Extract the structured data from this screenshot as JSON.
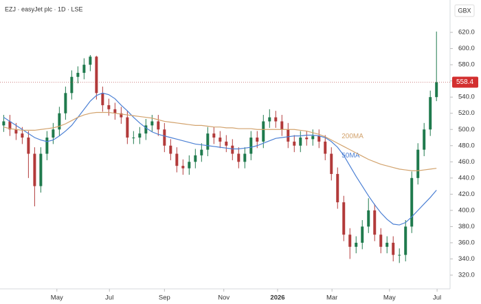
{
  "chart_data": {
    "type": "candlestick",
    "title": "EZJ · easyJet plc · 1D · LSE",
    "currency": "GBX",
    "x": [
      0,
      1,
      2,
      3,
      4,
      5,
      6,
      7,
      8,
      9,
      10,
      11,
      12,
      13,
      14,
      15,
      16,
      17,
      18,
      19,
      20,
      21,
      22,
      23,
      24,
      25,
      26,
      27,
      28,
      29,
      30,
      31,
      32,
      33,
      34,
      35,
      36,
      37,
      38,
      39,
      40,
      41,
      42,
      43,
      44,
      45,
      46,
      47,
      48,
      49,
      50,
      51,
      52,
      53,
      54,
      55,
      56,
      57,
      58,
      59,
      60,
      61,
      62,
      63,
      64,
      65,
      66,
      67,
      68,
      69,
      70
    ],
    "open": [
      505,
      510,
      500,
      495,
      490,
      470,
      430,
      470,
      490,
      500,
      520,
      545,
      565,
      570,
      580,
      590,
      545,
      530,
      525,
      520,
      515,
      490,
      490,
      495,
      505,
      510,
      500,
      480,
      470,
      455,
      452,
      460,
      468,
      475,
      495,
      490,
      485,
      480,
      470,
      460,
      470,
      490,
      485,
      510,
      515,
      510,
      500,
      485,
      480,
      490,
      488,
      492,
      485,
      470,
      445,
      410,
      370,
      355,
      360,
      380,
      400,
      370,
      355,
      360,
      345,
      345,
      380,
      440,
      475,
      500,
      540
    ],
    "high": [
      518,
      518,
      508,
      503,
      498,
      478,
      478,
      498,
      508,
      528,
      553,
      573,
      578,
      588,
      592,
      591,
      553,
      538,
      533,
      528,
      523,
      498,
      503,
      513,
      518,
      518,
      508,
      488,
      478,
      463,
      468,
      476,
      483,
      503,
      503,
      498,
      493,
      488,
      478,
      478,
      498,
      498,
      518,
      525,
      523,
      518,
      508,
      493,
      498,
      498,
      500,
      500,
      493,
      478,
      453,
      418,
      378,
      368,
      388,
      415,
      408,
      378,
      368,
      368,
      353,
      388,
      448,
      483,
      508,
      548,
      621
    ],
    "low": [
      497,
      492,
      487,
      482,
      440,
      405,
      422,
      462,
      482,
      492,
      512,
      537,
      557,
      562,
      572,
      537,
      522,
      517,
      512,
      507,
      482,
      482,
      482,
      487,
      497,
      492,
      472,
      462,
      447,
      444,
      444,
      452,
      460,
      467,
      482,
      477,
      472,
      462,
      452,
      452,
      462,
      477,
      477,
      502,
      502,
      492,
      477,
      472,
      472,
      480,
      480,
      477,
      462,
      437,
      402,
      362,
      340,
      347,
      352,
      372,
      362,
      347,
      347,
      337,
      335,
      337,
      372,
      432,
      467,
      492,
      535
    ],
    "close": [
      510,
      500,
      495,
      490,
      470,
      430,
      470,
      490,
      500,
      520,
      545,
      565,
      570,
      580,
      590,
      545,
      530,
      525,
      520,
      515,
      490,
      490,
      495,
      505,
      510,
      500,
      480,
      470,
      455,
      452,
      460,
      468,
      475,
      495,
      490,
      485,
      480,
      470,
      460,
      470,
      490,
      485,
      510,
      515,
      510,
      500,
      485,
      480,
      490,
      488,
      492,
      485,
      470,
      445,
      410,
      370,
      355,
      360,
      380,
      400,
      370,
      355,
      360,
      345,
      345,
      380,
      440,
      475,
      500,
      540,
      558.4
    ],
    "up_color": "#1f7a4d",
    "down_color": "#b23a3a",
    "series": [
      {
        "name": "50MA",
        "color": "#4a7fd4",
        "values": [
          515,
          510,
          505,
          500,
          495,
          490,
          487,
          485,
          487,
          492,
          498,
          505,
          515,
          525,
          535,
          542,
          545,
          543,
          538,
          530,
          523,
          515,
          508,
          502,
          497,
          494,
          492,
          490,
          488,
          486,
          484,
          482,
          481,
          480,
          479,
          478,
          477,
          476,
          476,
          477,
          478,
          480,
          483,
          486,
          489,
          490,
          491,
          492,
          492,
          493,
          493,
          492,
          490,
          485,
          478,
          468,
          455,
          442,
          430,
          418,
          407,
          397,
          389,
          383,
          382,
          385,
          392,
          400,
          408,
          416,
          425
        ]
      },
      {
        "name": "200MA",
        "color": "#d2a26c",
        "values": [
          503,
          501,
          500,
          499,
          499,
          499,
          500,
          501,
          502,
          504,
          507,
          511,
          515,
          518,
          520,
          521,
          521,
          521,
          520,
          519,
          518,
          517,
          516,
          515,
          514,
          512,
          510,
          509,
          508,
          507,
          506,
          505,
          505,
          504,
          503,
          503,
          502,
          502,
          501,
          501,
          501,
          500,
          500,
          500,
          500,
          500,
          500,
          500,
          499,
          498,
          496,
          494,
          491,
          487,
          483,
          479,
          475,
          471,
          467,
          463,
          460,
          457,
          455,
          453,
          451,
          450,
          449,
          449,
          450,
          451,
          452
        ]
      }
    ],
    "last_price": 558.4,
    "xlim": [
      -0.6,
      72.2
    ],
    "xticks": [
      {
        "value": 8.6,
        "label": "May"
      },
      {
        "value": 17.1,
        "label": "Jul"
      },
      {
        "value": 26,
        "label": "Sep"
      },
      {
        "value": 35.6,
        "label": "Nov"
      },
      {
        "value": 44.3,
        "label": "2026"
      },
      {
        "value": 53.1,
        "label": "Mar"
      },
      {
        "value": 62.4,
        "label": "May"
      },
      {
        "value": 70.1,
        "label": "Jul"
      }
    ],
    "ylim": [
      303,
      660
    ],
    "yticks": [
      {
        "value": 320,
        "label": "320.0"
      },
      {
        "value": 340,
        "label": "340.0"
      },
      {
        "value": 360,
        "label": "360.0"
      },
      {
        "value": 380,
        "label": "380.0"
      },
      {
        "value": 400,
        "label": "400.0"
      },
      {
        "value": 420,
        "label": "420.0"
      },
      {
        "value": 440,
        "label": "440.0"
      },
      {
        "value": 460,
        "label": "460.0"
      },
      {
        "value": 480,
        "label": "480.0"
      },
      {
        "value": 500,
        "label": "500.0"
      },
      {
        "value": 520,
        "label": "520.0"
      },
      {
        "value": 540,
        "label": "540.0"
      },
      {
        "value": 560,
        "label": "560.0"
      },
      {
        "value": 580,
        "label": "580.0"
      },
      {
        "value": 600,
        "label": "600.0"
      },
      {
        "value": 620,
        "label": "620.0"
      }
    ],
    "grid": false
  }
}
